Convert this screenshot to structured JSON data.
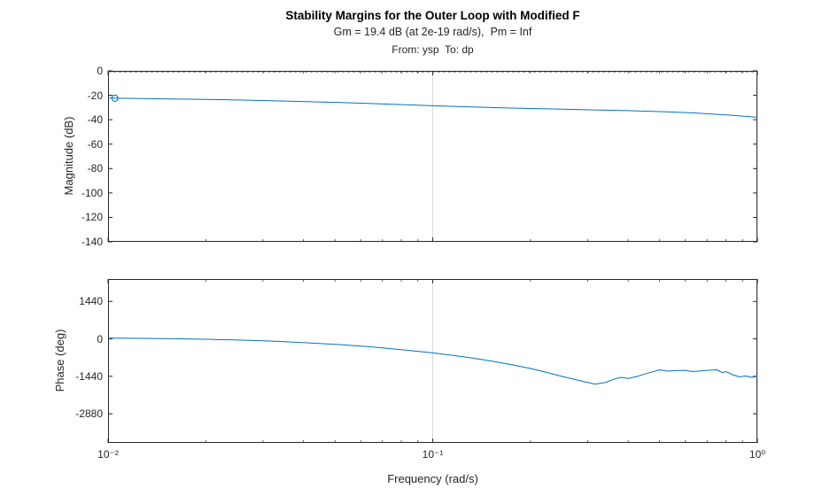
{
  "header": {
    "title": "Stability Margins for the Outer Loop with Modified F",
    "subtitle": "Gm = 19.4 dB (at 2e-19 rad/s),  Pm = Inf",
    "io_line": "From: ysp  To: dp"
  },
  "xlabel": "Frequency (rad/s)",
  "colors": {
    "line": "#0072BD",
    "axis": "#262626",
    "grid": "#d9d9d9",
    "ref": "#999999"
  },
  "chart_data": [
    {
      "type": "line",
      "name": "magnitude-response",
      "ylabel": "Magnitude (dB)",
      "xscale": "log",
      "xlim": [
        0.01,
        1
      ],
      "ylim": [
        -140,
        0
      ],
      "yticks": [
        0,
        -20,
        -40,
        -60,
        -80,
        -100,
        -120,
        -140
      ],
      "ytick_labels": [
        "0",
        "-20",
        "-40",
        "-60",
        "-80",
        "-100",
        "-120",
        "-140"
      ],
      "xticks": [
        0.01,
        0.1,
        1
      ],
      "xtick_labels": [
        "10⁻²",
        "10⁻¹",
        "10⁰"
      ],
      "grid_x": [
        0.1
      ],
      "ref_line_y": 0,
      "marker": {
        "x": 0.0105,
        "y": -22.4
      },
      "series": [
        {
          "name": "magnitude",
          "x": [
            0.01,
            0.0126,
            0.0158,
            0.02,
            0.0251,
            0.0316,
            0.0398,
            0.0501,
            0.0631,
            0.0794,
            0.1,
            0.126,
            0.158,
            0.2,
            0.251,
            0.316,
            0.398,
            0.501,
            0.631,
            0.794,
            1.0
          ],
          "y": [
            -22.3,
            -22.6,
            -23.0,
            -23.4,
            -23.9,
            -24.5,
            -25.1,
            -25.8,
            -26.6,
            -27.6,
            -28.6,
            -29.4,
            -30.2,
            -30.8,
            -31.4,
            -32.0,
            -32.6,
            -33.4,
            -34.4,
            -36.0,
            -38.0
          ]
        }
      ]
    },
    {
      "type": "line",
      "name": "phase-response",
      "ylabel": "Phase (deg)",
      "xscale": "log",
      "xlim": [
        0.01,
        1
      ],
      "ylim": [
        -4000,
        2300
      ],
      "yticks": [
        1440,
        0,
        -1440,
        -2880
      ],
      "ytick_labels": [
        "1440",
        "0",
        "-1440",
        "-2880"
      ],
      "xticks": [
        0.01,
        0.1,
        1
      ],
      "xtick_labels": [
        "10⁻²",
        "10⁻¹",
        "10⁰"
      ],
      "grid_x": [
        0.1
      ],
      "series": [
        {
          "name": "phase",
          "x": [
            0.01,
            0.0126,
            0.0158,
            0.02,
            0.0251,
            0.0316,
            0.0398,
            0.0501,
            0.0631,
            0.0794,
            0.1,
            0.112,
            0.126,
            0.141,
            0.158,
            0.178,
            0.2,
            0.224,
            0.251,
            0.282,
            0.316,
            0.34,
            0.36,
            0.38,
            0.4,
            0.425,
            0.45,
            0.475,
            0.5,
            0.53,
            0.56,
            0.6,
            0.63,
            0.67,
            0.7,
            0.75,
            0.78,
            0.8,
            0.84,
            0.88,
            0.92,
            0.96,
            1.0
          ],
          "y": [
            30,
            20,
            5,
            -15,
            -45,
            -85,
            -140,
            -210,
            -300,
            -410,
            -540,
            -615,
            -700,
            -790,
            -890,
            -1010,
            -1140,
            -1290,
            -1450,
            -1600,
            -1740,
            -1680,
            -1560,
            -1480,
            -1520,
            -1450,
            -1350,
            -1270,
            -1190,
            -1240,
            -1220,
            -1210,
            -1260,
            -1230,
            -1210,
            -1190,
            -1300,
            -1260,
            -1380,
            -1460,
            -1430,
            -1480,
            -1440
          ]
        }
      ]
    }
  ]
}
